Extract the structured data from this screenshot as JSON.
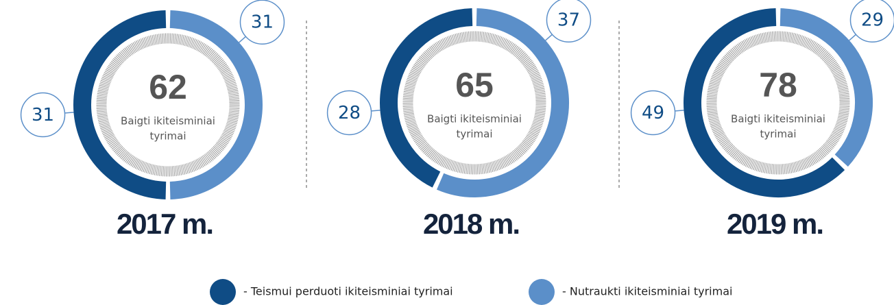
{
  "legend": [
    {
      "name": "- Teismui perduoti ikiteisminiai tyrimai",
      "color": "#0f4c85"
    },
    {
      "name": "- Nutraukti ikiteisminiai tyrimai",
      "color": "#5b8fc9"
    }
  ],
  "chart_data": [
    {
      "type": "donut",
      "title": "2017 m.",
      "total": 62,
      "center_label": [
        "Baigti ikiteisminiai",
        "tyrimai"
      ],
      "values": [
        31,
        31
      ]
    },
    {
      "type": "donut",
      "title": "2018 m.",
      "total": 65,
      "center_label": [
        "Baigti ikiteisminiai",
        "tyrimai"
      ],
      "values": [
        28,
        37
      ]
    },
    {
      "type": "donut",
      "title": "2019 m.",
      "total": 78,
      "center_label": [
        "Baigti ikiteisminiai",
        "tyrimai"
      ],
      "values": [
        49,
        29
      ]
    }
  ]
}
